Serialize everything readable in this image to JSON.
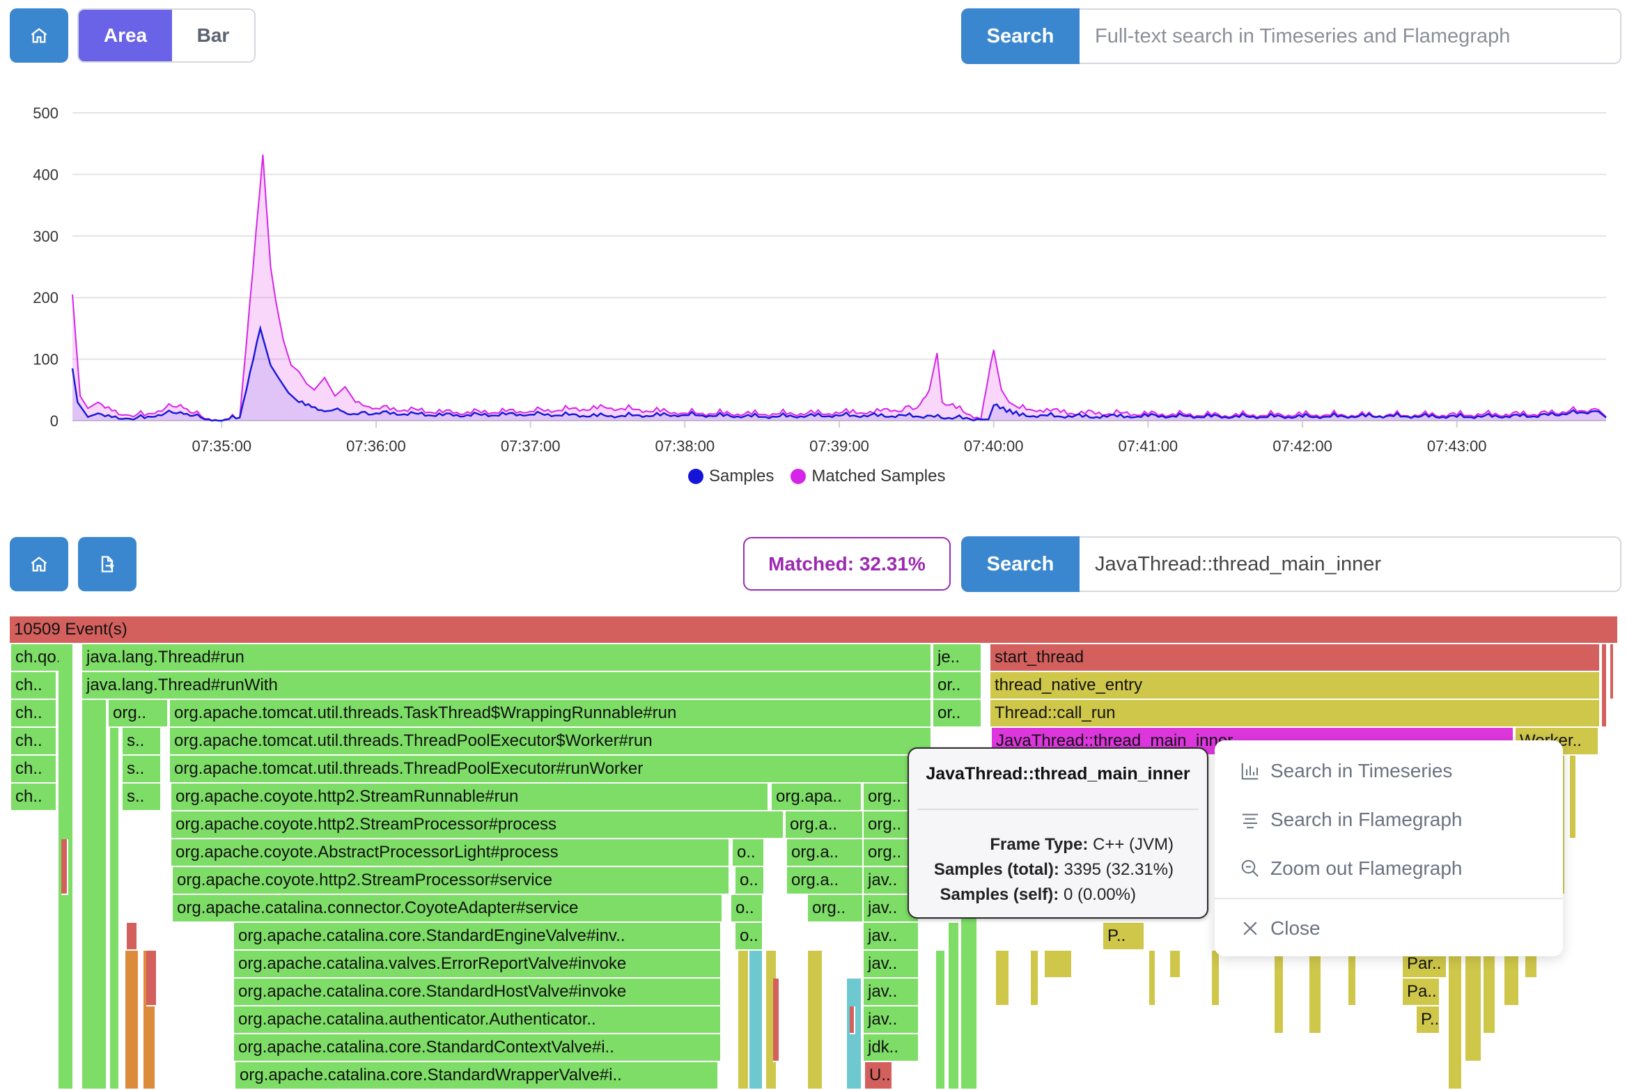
{
  "top_toolbar": {
    "home_icon": "home-icon",
    "chart_modes": [
      "Area",
      "Bar"
    ],
    "active_mode": "Area",
    "search_label": "Search",
    "search_placeholder": "Full-text search in Timeseries and Flamegraph"
  },
  "chart_data": {
    "type": "area",
    "y_ticks": [
      "500",
      "400",
      "300",
      "200",
      "100",
      "0"
    ],
    "ylim": [
      0,
      500
    ],
    "x_ticks": [
      "07:35:00",
      "07:36:00",
      "07:37:00",
      "07:38:00",
      "07:39:00",
      "07:40:00",
      "07:41:00",
      "07:42:00",
      "07:43:00"
    ],
    "x_range": [
      "07:34:02",
      "07:43:58"
    ],
    "grid": true,
    "legend_position": "bottom",
    "series": [
      {
        "name": "Samples",
        "color": "#1515d9",
        "points": [
          [
            "07:34:02",
            85
          ],
          [
            "07:34:04",
            30
          ],
          [
            "07:34:08",
            6
          ],
          [
            "07:34:12",
            12
          ],
          [
            "07:34:20",
            3
          ],
          [
            "07:34:30",
            4
          ],
          [
            "07:34:38",
            12
          ],
          [
            "07:34:44",
            14
          ],
          [
            "07:34:49",
            8
          ],
          [
            "07:34:55",
            2
          ],
          [
            "07:35:00",
            0
          ],
          [
            "07:35:07",
            5
          ],
          [
            "07:35:15",
            150
          ],
          [
            "07:35:19",
            90
          ],
          [
            "07:35:22",
            70
          ],
          [
            "07:35:26",
            45
          ],
          [
            "07:35:30",
            30
          ],
          [
            "07:35:35",
            22
          ],
          [
            "07:35:40",
            15
          ],
          [
            "07:35:45",
            20
          ],
          [
            "07:35:50",
            10
          ],
          [
            "07:36:00",
            12
          ],
          [
            "07:36:30",
            8
          ],
          [
            "07:37:00",
            10
          ],
          [
            "07:37:30",
            7
          ],
          [
            "07:38:00",
            9
          ],
          [
            "07:38:30",
            6
          ],
          [
            "07:39:00",
            8
          ],
          [
            "07:39:30",
            7
          ],
          [
            "07:39:55",
            2
          ],
          [
            "07:39:58",
            2
          ],
          [
            "07:40:00",
            25
          ],
          [
            "07:40:05",
            14
          ],
          [
            "07:40:10",
            8
          ],
          [
            "07:40:40",
            6
          ],
          [
            "07:41:00",
            7
          ],
          [
            "07:41:30",
            6
          ],
          [
            "07:42:00",
            6
          ],
          [
            "07:42:30",
            7
          ],
          [
            "07:43:00",
            6
          ],
          [
            "07:43:30",
            7
          ],
          [
            "07:43:55",
            15
          ],
          [
            "07:43:58",
            5
          ]
        ]
      },
      {
        "name": "Matched Samples",
        "color": "#d624e8",
        "points": [
          [
            "07:34:02",
            205
          ],
          [
            "07:34:05",
            40
          ],
          [
            "07:34:08",
            20
          ],
          [
            "07:34:12",
            30
          ],
          [
            "07:34:20",
            10
          ],
          [
            "07:34:30",
            8
          ],
          [
            "07:34:38",
            20
          ],
          [
            "07:34:44",
            26
          ],
          [
            "07:34:49",
            12
          ],
          [
            "07:34:55",
            3
          ],
          [
            "07:35:00",
            0
          ],
          [
            "07:35:07",
            5
          ],
          [
            "07:35:16",
            432
          ],
          [
            "07:35:19",
            250
          ],
          [
            "07:35:21",
            195
          ],
          [
            "07:35:24",
            130
          ],
          [
            "07:35:27",
            90
          ],
          [
            "07:35:30",
            80
          ],
          [
            "07:35:33",
            60
          ],
          [
            "07:35:36",
            50
          ],
          [
            "07:35:40",
            70
          ],
          [
            "07:35:44",
            40
          ],
          [
            "07:35:48",
            55
          ],
          [
            "07:35:52",
            30
          ],
          [
            "07:36:00",
            20
          ],
          [
            "07:36:30",
            12
          ],
          [
            "07:37:00",
            15
          ],
          [
            "07:37:30",
            20
          ],
          [
            "07:38:00",
            12
          ],
          [
            "07:38:30",
            10
          ],
          [
            "07:39:00",
            12
          ],
          [
            "07:39:20",
            15
          ],
          [
            "07:39:30",
            20
          ],
          [
            "07:39:35",
            50
          ],
          [
            "07:39:38",
            110
          ],
          [
            "07:39:40",
            30
          ],
          [
            "07:39:55",
            2
          ],
          [
            "07:40:00",
            115
          ],
          [
            "07:40:03",
            50
          ],
          [
            "07:40:06",
            30
          ],
          [
            "07:40:10",
            20
          ],
          [
            "07:40:30",
            12
          ],
          [
            "07:41:00",
            10
          ],
          [
            "07:41:30",
            8
          ],
          [
            "07:42:00",
            9
          ],
          [
            "07:42:30",
            8
          ],
          [
            "07:43:00",
            9
          ],
          [
            "07:43:30",
            10
          ],
          [
            "07:43:55",
            18
          ],
          [
            "07:43:58",
            6
          ]
        ]
      }
    ]
  },
  "flame_toolbar": {
    "home_icon": "home-icon",
    "export_icon": "export-file-icon",
    "matched_label": "Matched: 32.31%",
    "search_label": "Search",
    "search_value": "JavaThread::thread_main_inner"
  },
  "flamegraph": {
    "root_label": "10509 Event(s)",
    "colors": {
      "root": "#d4605e",
      "java": "#7ddd66",
      "native": "#cfc74a",
      "match": "#dd36dd",
      "red": "#d4605e",
      "orange": "#dc8a3c",
      "cyan": "#6ec8cf"
    },
    "frames": [
      {
        "label": "10509 Event(s)",
        "c": "root"
      },
      {
        "label": "ch.qo..",
        "c": "java"
      },
      {
        "label": "java.lang.Thread#run",
        "c": "java"
      },
      {
        "label": "je..",
        "c": "java"
      },
      {
        "label": "start_thread",
        "c": "red"
      },
      {
        "label": "ch..",
        "c": "java"
      },
      {
        "label": "java.lang.Thread#runWith",
        "c": "java"
      },
      {
        "label": "or..",
        "c": "java"
      },
      {
        "label": "thread_native_entry",
        "c": "native"
      },
      {
        "label": "ch..",
        "c": "java"
      },
      {
        "label": "org..",
        "c": "java"
      },
      {
        "label": "org.apache.tomcat.util.threads.TaskThread$WrappingRunnable#run",
        "c": "java"
      },
      {
        "label": "or..",
        "c": "java"
      },
      {
        "label": "Thread::call_run",
        "c": "native"
      },
      {
        "label": "ch..",
        "c": "java"
      },
      {
        "label": "s..",
        "c": "java"
      },
      {
        "label": "org.apache.tomcat.util.threads.ThreadPoolExecutor$Worker#run",
        "c": "java"
      },
      {
        "label": "JavaThread::thread_main_inner",
        "c": "match"
      },
      {
        "label": "Worker..",
        "c": "native"
      },
      {
        "label": "ch..",
        "c": "java"
      },
      {
        "label": "s..",
        "c": "java"
      },
      {
        "label": "org.apache.tomcat.util.threads.ThreadPoolExecutor#runWorker",
        "c": "java"
      },
      {
        "label": "ch..",
        "c": "java"
      },
      {
        "label": "s..",
        "c": "java"
      },
      {
        "label": "org.apache.coyote.http2.StreamRunnable#run",
        "c": "java"
      },
      {
        "label": "org.apa..",
        "c": "java"
      },
      {
        "label": "org..",
        "c": "java"
      },
      {
        "label": "org.apache.coyote.http2.StreamProcessor#process",
        "c": "java"
      },
      {
        "label": "org.a..",
        "c": "java"
      },
      {
        "label": "org..",
        "c": "java"
      },
      {
        "label": "org.apache.coyote.AbstractProcessorLight#process",
        "c": "java"
      },
      {
        "label": "o..",
        "c": "java"
      },
      {
        "label": "org.a..",
        "c": "java"
      },
      {
        "label": "org..",
        "c": "java"
      },
      {
        "label": "org.apache.coyote.http2.StreamProcessor#service",
        "c": "java"
      },
      {
        "label": "o..",
        "c": "java"
      },
      {
        "label": "org.a..",
        "c": "java"
      },
      {
        "label": "jav..",
        "c": "java"
      },
      {
        "label": "org.apache.catalina.connector.CoyoteAdapter#service",
        "c": "java"
      },
      {
        "label": "o..",
        "c": "java"
      },
      {
        "label": "org..",
        "c": "java"
      },
      {
        "label": "jav..",
        "c": "java"
      },
      {
        "label": "org.apache.catalina.core.StandardEngineValve#inv..",
        "c": "java"
      },
      {
        "label": "o..",
        "c": "java"
      },
      {
        "label": "jav..",
        "c": "java"
      },
      {
        "label": "P..",
        "c": "native"
      },
      {
        "label": "org.apache.catalina.valves.ErrorReportValve#invoke",
        "c": "java"
      },
      {
        "label": "jav..",
        "c": "java"
      },
      {
        "label": "Par..",
        "c": "native"
      },
      {
        "label": "org.apache.catalina.core.StandardHostValve#invoke",
        "c": "java"
      },
      {
        "label": "jav..",
        "c": "java"
      },
      {
        "label": "Pa..",
        "c": "native"
      },
      {
        "label": "org.apache.catalina.authenticator.Authenticator..",
        "c": "java"
      },
      {
        "label": "jav..",
        "c": "java"
      },
      {
        "label": "P..",
        "c": "native"
      },
      {
        "label": "org.apache.catalina.core.StandardContextValve#i..",
        "c": "java"
      },
      {
        "label": "jdk..",
        "c": "java"
      },
      {
        "label": "org.apache.catalina.core.StandardWrapperValve#i..",
        "c": "java"
      },
      {
        "label": "U..",
        "c": "red"
      }
    ]
  },
  "tooltip": {
    "title": "JavaThread::thread_main_inner",
    "frame_type_label": "Frame Type:",
    "frame_type_value": "C++ (JVM)",
    "samples_total_label": "Samples (total):",
    "samples_total_value": "3395 (32.31%)",
    "samples_self_label": "Samples (self):",
    "samples_self_value": "0 (0.00%)"
  },
  "context_menu": {
    "items": [
      {
        "label": "Search in Timeseries",
        "icon": "bar-chart-icon"
      },
      {
        "label": "Search in Flamegraph",
        "icon": "align-lines-icon"
      },
      {
        "label": "Zoom out Flamegraph",
        "icon": "zoom-out-icon"
      },
      {
        "label": "Close",
        "icon": "close-icon"
      }
    ]
  }
}
